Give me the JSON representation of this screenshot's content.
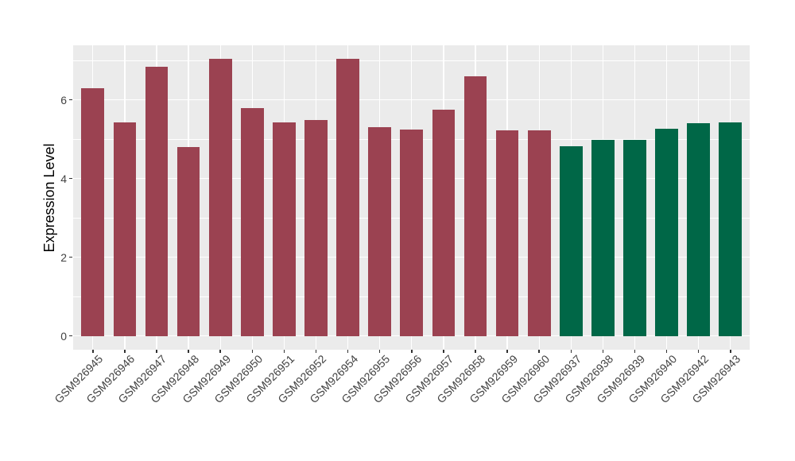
{
  "chart_data": {
    "type": "bar",
    "title": "",
    "xlabel": "",
    "ylabel": "Expression Level",
    "legend_position": "none",
    "grid": "white major and minor gridlines on gray panel",
    "ylim": [
      -0.35,
      7.39
    ],
    "yticks": [
      0,
      2,
      4,
      6
    ],
    "yticks_minor": [
      1,
      3,
      5,
      7
    ],
    "categories": [
      "GSM926945",
      "GSM926946",
      "GSM926947",
      "GSM926948",
      "GSM926949",
      "GSM926950",
      "GSM926951",
      "GSM926952",
      "GSM926954",
      "GSM926955",
      "GSM926956",
      "GSM926957",
      "GSM926958",
      "GSM926959",
      "GSM926960",
      "GSM926937",
      "GSM926938",
      "GSM926939",
      "GSM926940",
      "GSM926942",
      "GSM926943"
    ],
    "values": [
      6.29,
      5.43,
      6.85,
      4.79,
      7.04,
      5.79,
      5.43,
      5.48,
      7.04,
      5.31,
      5.25,
      5.75,
      6.59,
      5.23,
      5.23,
      4.82,
      4.98,
      4.98,
      5.26,
      5.41,
      5.43
    ],
    "bar_colors": [
      "#9B4251",
      "#9B4251",
      "#9B4251",
      "#9B4251",
      "#9B4251",
      "#9B4251",
      "#9B4251",
      "#9B4251",
      "#9B4251",
      "#9B4251",
      "#9B4251",
      "#9B4251",
      "#9B4251",
      "#9B4251",
      "#9B4251",
      "#006747",
      "#006747",
      "#006747",
      "#006747",
      "#006747",
      "#006747"
    ],
    "colors": {
      "panel_background": "#EBEBEB",
      "gridline": "#FFFFFF",
      "tick_mark": "#333333",
      "axis_text": "#424242",
      "axis_title": "#000000",
      "figure_background": "#FFFFFF",
      "bar_group_left": "#9B4251",
      "bar_group_right": "#006747"
    }
  }
}
